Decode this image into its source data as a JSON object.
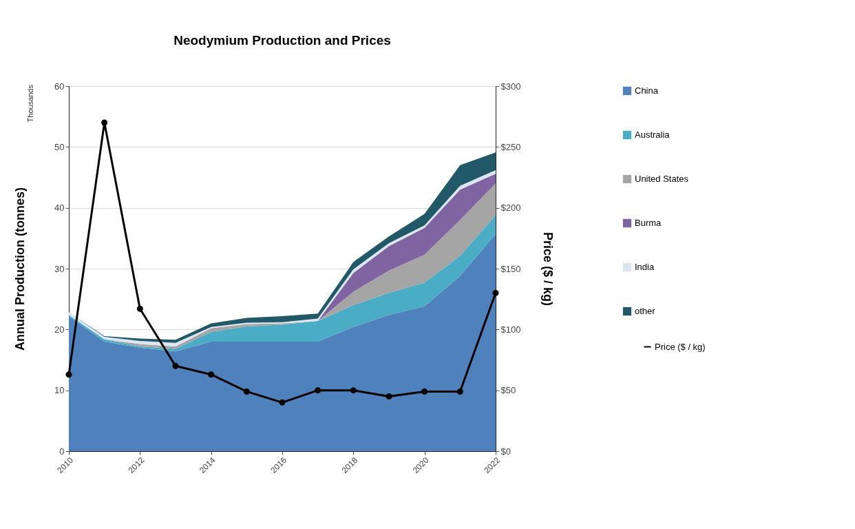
{
  "chart_data": {
    "type": "area",
    "title": "Neodymium Production and Prices",
    "ylabel": "Annual Production  (tonnes)",
    "y2label": "Price ($ / kg)",
    "annotations": [
      "Thousands"
    ],
    "x": [
      2010,
      2011,
      2012,
      2013,
      2014,
      2015,
      2016,
      2017,
      2018,
      2019,
      2020,
      2021,
      2022
    ],
    "stacked": true,
    "series": [
      {
        "name": "China",
        "color": "#4f81bd",
        "values": [
          22.2,
          18.0,
          17.0,
          16.4,
          18.0,
          18.0,
          18.0,
          18.0,
          20.4,
          22.4,
          23.8,
          28.8,
          35.7
        ]
      },
      {
        "name": "Australia",
        "color": "#4bacc6",
        "values": [
          0.2,
          0.4,
          0.2,
          0.4,
          1.6,
          2.5,
          2.8,
          3.4,
          3.6,
          3.6,
          3.9,
          3.3,
          3.1
        ]
      },
      {
        "name": "United States",
        "color": "#a5a5a5",
        "values": [
          0,
          0,
          0.4,
          0.4,
          0.6,
          0.4,
          0.2,
          0,
          2.2,
          3.7,
          4.6,
          5.9,
          5.2
        ]
      },
      {
        "name": "Burma",
        "color": "#8064a2",
        "values": [
          0,
          0,
          0,
          0,
          0,
          0,
          0,
          0,
          3.1,
          4.0,
          4.4,
          5.0,
          1.6
        ]
      },
      {
        "name": "India",
        "color": "#dce6f2",
        "values": [
          0.4,
          0.4,
          0.5,
          0.6,
          0.2,
          0.2,
          0.2,
          0.4,
          0.6,
          0.5,
          0.4,
          0.6,
          0.6
        ]
      },
      {
        "name": "other",
        "color": "#215968",
        "values": [
          0,
          0.1,
          0.4,
          0.5,
          0.6,
          0.8,
          1.0,
          0.8,
          1.2,
          1.1,
          1.9,
          3.4,
          2.9
        ]
      },
      {
        "name": "Price ($ / kg)",
        "type": "line",
        "axis": "y2",
        "marker": "circle",
        "color": "#000000",
        "values": [
          63,
          270,
          117,
          70,
          63,
          49,
          40,
          50,
          50,
          45,
          49,
          49,
          130
        ]
      }
    ],
    "xlim": [
      2010,
      2022
    ],
    "xticks": [
      2010,
      2012,
      2014,
      2016,
      2018,
      2020,
      2022
    ],
    "ylim": [
      0,
      60
    ],
    "yticks": [
      0,
      10,
      20,
      30,
      40,
      50,
      60
    ],
    "y2lim": [
      0,
      300
    ],
    "y2ticks": [
      {
        "value": 0,
        "label": "$0"
      },
      {
        "value": 50,
        "label": "$50"
      },
      {
        "value": 100,
        "label": "$100"
      },
      {
        "value": 150,
        "label": "$150"
      },
      {
        "value": 200,
        "label": "$200"
      },
      {
        "value": 250,
        "label": "$250"
      },
      {
        "value": 300,
        "label": "$300"
      }
    ],
    "grid": "y",
    "legend": "right"
  }
}
